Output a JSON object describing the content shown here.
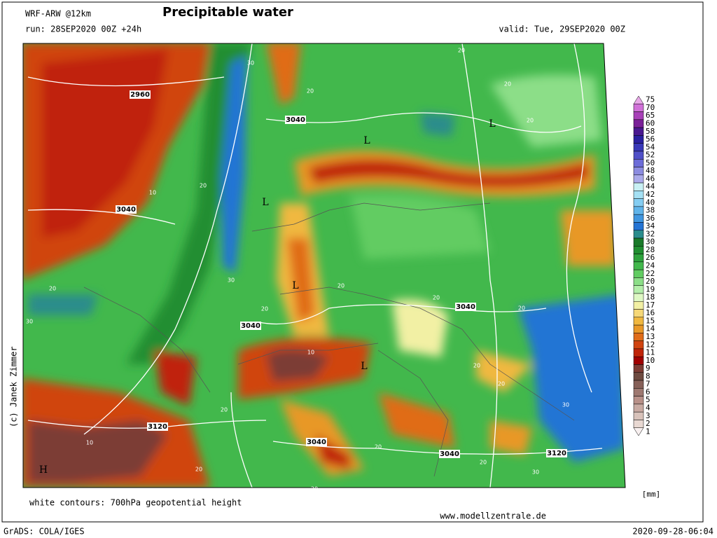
{
  "header": {
    "model": "WRF-ARW @12km",
    "title": "Precipitable water",
    "run": "run: 28SEP2020 00Z +24h",
    "valid": "valid: Tue, 29SEP2020 00Z"
  },
  "colorbar": {
    "unit": "[mm]",
    "levels": [
      {
        "label": "75",
        "color": "#e8a8e8"
      },
      {
        "label": "70",
        "color": "#d070d8"
      },
      {
        "label": "65",
        "color": "#a840b8"
      },
      {
        "label": "60",
        "color": "#7a2098"
      },
      {
        "label": "58",
        "color": "#4a1890"
      },
      {
        "label": "56",
        "color": "#2a20a0"
      },
      {
        "label": "54",
        "color": "#3838b8"
      },
      {
        "label": "52",
        "color": "#5050c8"
      },
      {
        "label": "50",
        "color": "#6c6cd8"
      },
      {
        "label": "48",
        "color": "#8c8ce0"
      },
      {
        "label": "46",
        "color": "#aaaaea"
      },
      {
        "label": "44",
        "color": "#c8f0f4"
      },
      {
        "label": "42",
        "color": "#a4e0f4"
      },
      {
        "label": "40",
        "color": "#84cdf2"
      },
      {
        "label": "38",
        "color": "#60b4ea"
      },
      {
        "label": "36",
        "color": "#4096e0"
      },
      {
        "label": "34",
        "color": "#2474d4"
      },
      {
        "label": "32",
        "color": "#2a8c8c"
      },
      {
        "label": "30",
        "color": "#1a7a2a"
      },
      {
        "label": "28",
        "color": "#208e30"
      },
      {
        "label": "26",
        "color": "#2ea23c"
      },
      {
        "label": "24",
        "color": "#42b84c"
      },
      {
        "label": "22",
        "color": "#62cc62"
      },
      {
        "label": "20",
        "color": "#8cde88"
      },
      {
        "label": "19",
        "color": "#b4eeaa"
      },
      {
        "label": "18",
        "color": "#def8c4"
      },
      {
        "label": "17",
        "color": "#f2f0a4"
      },
      {
        "label": "16",
        "color": "#f6d878"
      },
      {
        "label": "15",
        "color": "#f0b840"
      },
      {
        "label": "14",
        "color": "#e89828"
      },
      {
        "label": "13",
        "color": "#e06c18"
      },
      {
        "label": "12",
        "color": "#d04410"
      },
      {
        "label": "11",
        "color": "#c02408"
      },
      {
        "label": "10",
        "color": "#a00000"
      },
      {
        "label": "9",
        "color": "#7c3c34"
      },
      {
        "label": "8",
        "color": "#6e4a40"
      },
      {
        "label": "7",
        "color": "#866058"
      },
      {
        "label": "6",
        "color": "#9e7870"
      },
      {
        "label": "5",
        "color": "#b89088"
      },
      {
        "label": "4",
        "color": "#c8aaa2"
      },
      {
        "label": "3",
        "color": "#d8c2ba"
      },
      {
        "label": "2",
        "color": "#e8d8d2"
      },
      {
        "label": "1",
        "color": "#f8f0f0"
      }
    ]
  },
  "map": {
    "contour_labels": [
      "2960",
      "3040",
      "3040",
      "3040",
      "3040",
      "3120",
      "3040",
      "3040",
      "3120",
      "30",
      "20",
      "20",
      "20",
      "10",
      "20",
      "30",
      "20",
      "20",
      "20",
      "10",
      "20",
      "20",
      "10",
      "20",
      "30",
      "20",
      "20",
      "20",
      "30",
      "20",
      "20",
      "20",
      "20",
      "30"
    ],
    "centers": [
      "L",
      "L",
      "L",
      "L",
      "L",
      "H"
    ]
  },
  "footer": {
    "legend": "white contours: 700hPa geopotential height",
    "site": "www.modellzentrale.de",
    "software": "GrADS: COLA/IGES",
    "timestamp": "2020-09-28-06:04",
    "credit": "(c) Janek Zimmer"
  }
}
